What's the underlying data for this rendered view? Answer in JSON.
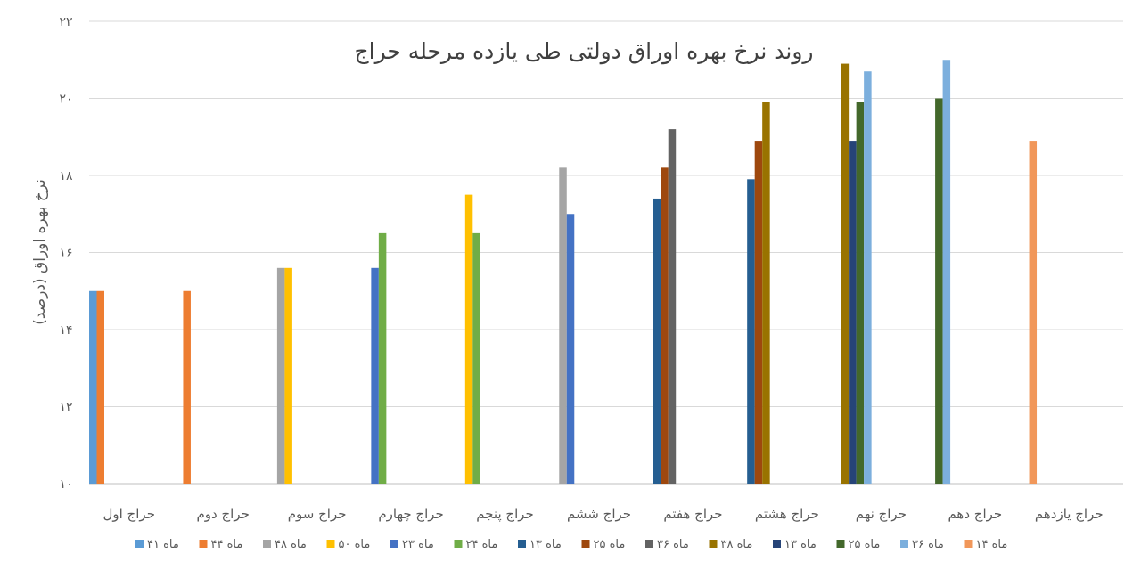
{
  "chart_data": {
    "type": "bar",
    "title": "روند نرخ بهره اوراق دولتی طی یازده مرحله حراج",
    "ylabel": "نرخ بهره اوراق (درصد)",
    "xlabel": "",
    "ylim": [
      10,
      22
    ],
    "yticks": [
      "۱۰",
      "۱۲",
      "۱۴",
      "۱۶",
      "۱۸",
      "۲۰",
      "۲۲"
    ],
    "grid": true,
    "legend_position": "bottom",
    "categories": [
      "حراج اول",
      "حراج دوم",
      "حراج سوم",
      "حراج چهارم",
      "حراج پنجم",
      "حراج ششم",
      "حراج هفتم",
      "حراج هشتم",
      "حراج نهم",
      "حراج دهم",
      "حراج یازدهم"
    ],
    "series": [
      {
        "name": "۴۱ ماه",
        "color": "#5b9bd5",
        "values": [
          15.0,
          null,
          null,
          null,
          null,
          null,
          null,
          null,
          null,
          null,
          null
        ]
      },
      {
        "name": "۴۴ ماه",
        "color": "#ed7d31",
        "values": [
          15.0,
          15.0,
          null,
          null,
          null,
          null,
          null,
          null,
          null,
          null,
          null
        ]
      },
      {
        "name": "۴۸ ماه",
        "color": "#a5a5a5",
        "values": [
          null,
          null,
          15.6,
          null,
          null,
          18.2,
          null,
          null,
          null,
          null,
          null
        ]
      },
      {
        "name": "۵۰ ماه",
        "color": "#ffc000",
        "values": [
          null,
          null,
          15.6,
          null,
          17.5,
          null,
          null,
          null,
          null,
          null,
          null
        ]
      },
      {
        "name": "۲۳ ماه",
        "color": "#4472c4",
        "values": [
          null,
          null,
          null,
          15.6,
          null,
          17.0,
          null,
          null,
          null,
          null,
          null
        ]
      },
      {
        "name": "۲۴ ماه",
        "color": "#70ad47",
        "values": [
          null,
          null,
          null,
          16.5,
          16.5,
          null,
          null,
          null,
          null,
          null,
          null
        ]
      },
      {
        "name": "۱۳ ماه",
        "color": "#255e91",
        "values": [
          null,
          null,
          null,
          null,
          null,
          null,
          17.4,
          17.9,
          null,
          null,
          null
        ]
      },
      {
        "name": "۲۵ ماه",
        "color": "#9e480e",
        "values": [
          null,
          null,
          null,
          null,
          null,
          null,
          18.2,
          18.9,
          null,
          null,
          null
        ]
      },
      {
        "name": "۳۶ ماه",
        "color": "#636363",
        "values": [
          null,
          null,
          null,
          null,
          null,
          null,
          19.2,
          null,
          null,
          null,
          null
        ]
      },
      {
        "name": "۳۸ ماه",
        "color": "#997300",
        "values": [
          null,
          null,
          null,
          null,
          null,
          null,
          null,
          19.9,
          20.9,
          null,
          null
        ]
      },
      {
        "name": "۱۳ ماه",
        "color": "#264478",
        "values": [
          null,
          null,
          null,
          null,
          null,
          null,
          null,
          null,
          18.9,
          null,
          null
        ]
      },
      {
        "name": "۲۵ ماه",
        "color": "#43682b",
        "values": [
          null,
          null,
          null,
          null,
          null,
          null,
          null,
          null,
          19.9,
          20.0,
          null
        ]
      },
      {
        "name": "۳۶ ماه",
        "color": "#7cafdd",
        "values": [
          null,
          null,
          null,
          null,
          null,
          null,
          null,
          null,
          20.7,
          21.0,
          null
        ]
      },
      {
        "name": "۱۴ ماه",
        "color": "#f1975a",
        "values": [
          null,
          null,
          null,
          null,
          null,
          null,
          null,
          null,
          null,
          null,
          18.9
        ]
      }
    ]
  }
}
